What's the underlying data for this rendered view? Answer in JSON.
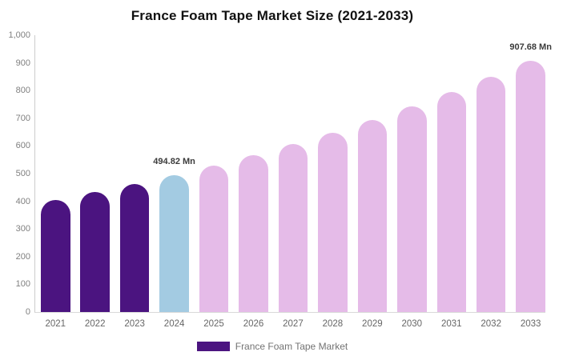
{
  "chart_data": {
    "type": "bar",
    "title": "France Foam Tape Market Size (2021-2033)",
    "categories": [
      "2021",
      "2022",
      "2023",
      "2024",
      "2025",
      "2026",
      "2027",
      "2028",
      "2029",
      "2030",
      "2031",
      "2032",
      "2033"
    ],
    "values": [
      404,
      432.3,
      462.5,
      494.82,
      529.5,
      566.5,
      606.1,
      648.5,
      693.9,
      742.5,
      794.4,
      850,
      907.68
    ],
    "unit": "Mn",
    "ylim": [
      0,
      1000
    ],
    "grid": false,
    "yticks": [
      {
        "value": 0,
        "label": "0"
      },
      {
        "value": 100,
        "label": "100"
      },
      {
        "value": 200,
        "label": "200"
      },
      {
        "value": 300,
        "label": "300"
      },
      {
        "value": 400,
        "label": "400"
      },
      {
        "value": 500,
        "label": "500"
      },
      {
        "value": 600,
        "label": "600"
      },
      {
        "value": 700,
        "label": "700"
      },
      {
        "value": 800,
        "label": "800"
      },
      {
        "value": 900,
        "label": "900"
      },
      {
        "value": 1000,
        "label": "1,000"
      }
    ],
    "colors": [
      "#4B1480",
      "#4B1480",
      "#4B1480",
      "#A3CBE2",
      "#E5BBE8",
      "#E5BBE8",
      "#E5BBE8",
      "#E5BBE8",
      "#E5BBE8",
      "#E5BBE8",
      "#E5BBE8",
      "#E5BBE8",
      "#E5BBE8"
    ],
    "annotations": [
      {
        "index": 3,
        "text": "494.82 Mn"
      },
      {
        "index": 12,
        "text": "907.68 Mn"
      }
    ],
    "legend": {
      "label": "France Foam Tape Market",
      "color": "#4B1480",
      "position": "bottom"
    }
  }
}
